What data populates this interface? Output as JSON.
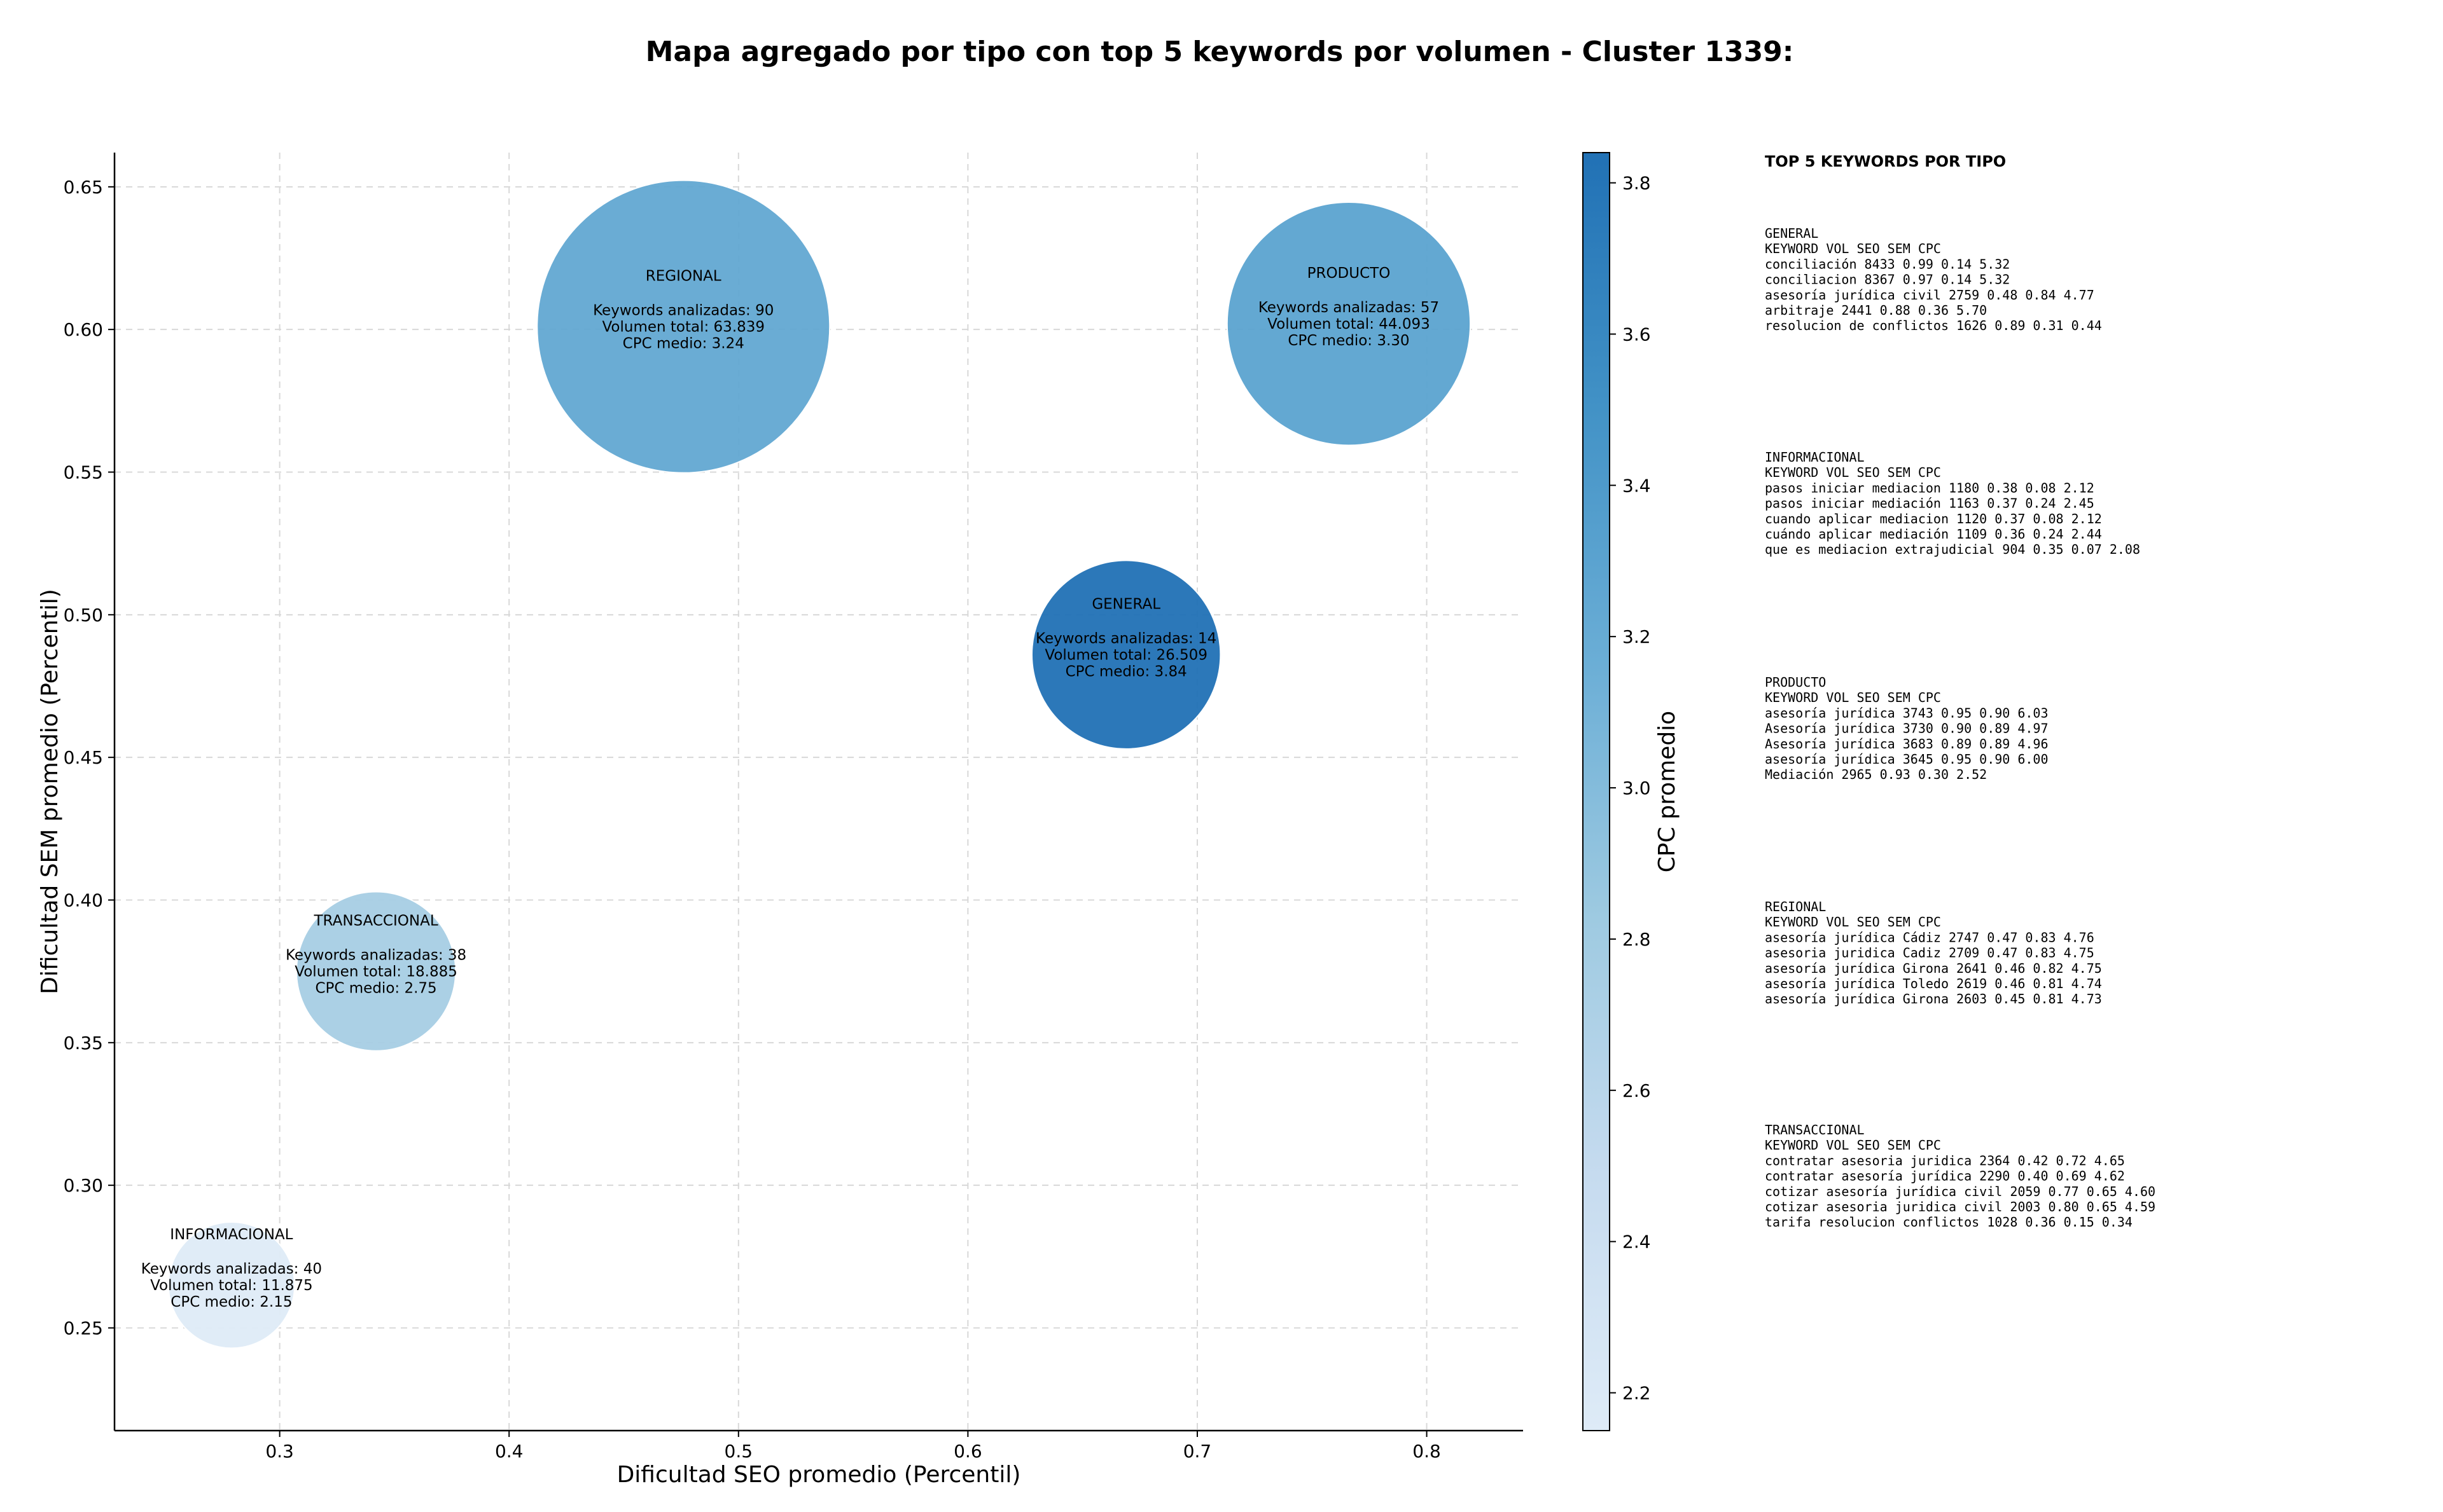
{
  "chart_data": {
    "type": "scatter",
    "title": "Mapa agregado por tipo con top 5 keywords por volumen - Cluster 1339:",
    "xlabel": "Dificultad SEO promedio (Percentil)",
    "ylabel": "Dificultad SEM promedio (Percentil)",
    "xlim": [
      0.228,
      0.842
    ],
    "ylim": [
      0.214,
      0.662
    ],
    "xticks": [
      0.3,
      0.4,
      0.5,
      0.6,
      0.7,
      0.8
    ],
    "xtick_labels": [
      "0.3",
      "0.4",
      "0.5",
      "0.6",
      "0.7",
      "0.8"
    ],
    "yticks": [
      0.25,
      0.3,
      0.35,
      0.4,
      0.45,
      0.5,
      0.55,
      0.6,
      0.65
    ],
    "ytick_labels": [
      "0.25",
      "0.30",
      "0.35",
      "0.40",
      "0.45",
      "0.50",
      "0.55",
      "0.60",
      "0.65"
    ],
    "grid": true,
    "colorbar": {
      "label": "CPC promedio",
      "range": [
        2.15,
        3.84
      ],
      "ticks": [
        2.2,
        2.4,
        2.6,
        2.8,
        3.0,
        3.2,
        3.4,
        3.6,
        3.8
      ],
      "tick_labels": [
        "2.2",
        "2.4",
        "2.6",
        "2.8",
        "3.0",
        "3.2",
        "3.4",
        "3.6",
        "3.8"
      ],
      "colormap": [
        "#deebf7",
        "#c6dbef",
        "#9ecae1",
        "#6baed6",
        "#4292c6",
        "#2171b5"
      ]
    },
    "points": [
      {
        "name": "REGIONAL",
        "x": 0.476,
        "y": 0.601,
        "keywords": 90,
        "volume": 63839,
        "cpc": 3.24,
        "lines": [
          "Keywords analizadas: 90",
          "Volumen total: 63.839",
          "CPC medio: 3.24"
        ]
      },
      {
        "name": "PRODUCTO",
        "x": 0.766,
        "y": 0.602,
        "keywords": 57,
        "volume": 44093,
        "cpc": 3.3,
        "lines": [
          "Keywords analizadas: 57",
          "Volumen total: 44.093",
          "CPC medio: 3.30"
        ]
      },
      {
        "name": "GENERAL",
        "x": 0.669,
        "y": 0.486,
        "keywords": 14,
        "volume": 26509,
        "cpc": 3.84,
        "lines": [
          "Keywords analizadas: 14",
          "Volumen total: 26.509",
          "CPC medio: 3.84"
        ]
      },
      {
        "name": "TRANSACCIONAL",
        "x": 0.342,
        "y": 0.375,
        "keywords": 38,
        "volume": 18885,
        "cpc": 2.75,
        "lines": [
          "Keywords analizadas: 38",
          "Volumen total: 18.885",
          "CPC medio: 2.75"
        ]
      },
      {
        "name": "INFORMACIONAL",
        "x": 0.279,
        "y": 0.265,
        "keywords": 40,
        "volume": 11875,
        "cpc": 2.15,
        "lines": [
          "Keywords analizadas: 40",
          "Volumen total: 11.875",
          "CPC medio: 2.15"
        ]
      }
    ],
    "side_table": {
      "title": "TOP 5 KEYWORDS POR TIPO",
      "groups": [
        {
          "name": "GENERAL",
          "header": "KEYWORD                    VOL    SEO    SEM      CPC",
          "rows": [
            "conciliación               8433   0.99   0.14     5.32",
            "conciliacion               8367   0.97   0.14     5.32",
            "asesoría jurídica civil    2759   0.48   0.84     4.77",
            "arbitraje                  2441   0.88   0.36     5.70",
            "resolucion de conflictos   1626   0.89   0.31     0.44"
          ]
        },
        {
          "name": "INFORMACIONAL",
          "header": "KEYWORD                          VOL    SEO    SEM      CPC",
          "rows": [
            "pasos iniciar mediacion          1180   0.38   0.08     2.12",
            "pasos iniciar mediación          1163   0.37   0.24     2.45",
            "cuando aplicar mediacion         1120   0.37   0.08     2.12",
            "cuándo aplicar mediación         1109   0.36   0.24     2.44",
            "que es mediacion extrajudicial    904   0.35   0.07     2.08"
          ]
        },
        {
          "name": "PRODUCTO",
          "header": "KEYWORD              VOL    SEO    SEM      CPC",
          "rows": [
            "asesoría jurídica    3743   0.95   0.90     6.03",
            "Asesoría jurídica    3730   0.90   0.89     4.97",
            "Asesoría jurídica    3683   0.89   0.89     4.96",
            "asesoría jurídica    3645   0.95   0.90     6.00",
            "Mediación            2965   0.93   0.30     2.52"
          ]
        },
        {
          "name": "REGIONAL",
          "header": "KEYWORD                    VOL    SEO    SEM      CPC",
          "rows": [
            "asesoría jurídica Cádiz    2747   0.47   0.83     4.76",
            "asesoria juridica Cadiz    2709   0.47   0.83     4.75",
            "asesoría jurídica Girona   2641   0.46   0.82     4.75",
            "asesoría jurídica Toledo   2619   0.46   0.81     4.74",
            "asesoría jurídica Girona   2603   0.45   0.81     4.73"
          ]
        },
        {
          "name": "TRANSACCIONAL",
          "header": "KEYWORD                           VOL    SEO    SEM      CPC",
          "rows": [
            "contratar asesoria juridica       2364   0.42   0.72     4.65",
            "contratar asesoría jurídica       2290   0.40   0.69     4.62",
            "cotizar asesoría jurídica civil   2059   0.77   0.65     4.60",
            "cotizar asesoria juridica civil   2003   0.80   0.65     4.59",
            "tarifa resolucion conflictos      1028   0.36   0.15     0.34"
          ]
        }
      ]
    }
  }
}
